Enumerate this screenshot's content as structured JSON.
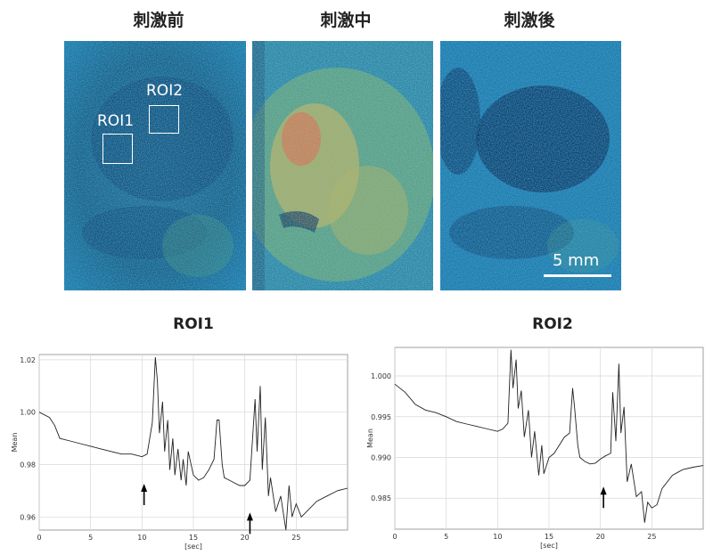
{
  "panels": [
    {
      "title": "刺激前"
    },
    {
      "title": "刺激中"
    },
    {
      "title": "刺激後"
    }
  ],
  "roi_labels": {
    "roi1": "ROI1",
    "roi2": "ROI2"
  },
  "scale_bar": {
    "label": "5 mm"
  },
  "colors": {
    "low": "#0d2a5c",
    "mid": "#1f8fbf",
    "high": "#e8c040",
    "hot": "#e06040"
  },
  "chart_data": [
    {
      "type": "line",
      "title": "ROI1",
      "xlabel": "[sec]",
      "ylabel": "Mean",
      "xlim": [
        0,
        30
      ],
      "ylim": [
        0.955,
        1.022
      ],
      "xticks": [
        0,
        5,
        10,
        15,
        20,
        25
      ],
      "yticks": [
        0.96,
        0.98,
        1.0,
        1.02
      ],
      "ytick_labels": [
        "0.96",
        "0.98",
        "1.00",
        "1.02"
      ],
      "grid": true,
      "annotations": [
        {
          "type": "arrow",
          "x": 10.2,
          "y": 0.972
        },
        {
          "type": "arrow",
          "x": 20.5,
          "y": 0.961
        }
      ],
      "x": [
        0,
        1,
        1.5,
        2,
        3,
        4,
        5,
        6,
        7,
        8,
        9,
        10,
        10.5,
        11,
        11.3,
        11.5,
        11.7,
        12,
        12.2,
        12.5,
        12.7,
        13,
        13.2,
        13.5,
        13.8,
        14,
        14.3,
        14.5,
        15,
        15.5,
        16,
        16.5,
        17,
        17.3,
        17.5,
        17.8,
        18,
        18.5,
        19,
        19.5,
        20,
        20.5,
        21,
        21.2,
        21.5,
        21.7,
        22,
        22.3,
        22.5,
        23,
        23.5,
        24,
        24.3,
        24.6,
        25,
        25.5,
        26,
        27,
        28,
        29,
        30
      ],
      "y": [
        1.0,
        0.998,
        0.995,
        0.99,
        0.989,
        0.988,
        0.987,
        0.986,
        0.985,
        0.984,
        0.984,
        0.983,
        0.984,
        0.996,
        1.021,
        1.012,
        0.992,
        1.004,
        0.985,
        0.997,
        0.978,
        0.99,
        0.976,
        0.986,
        0.974,
        0.982,
        0.972,
        0.985,
        0.976,
        0.974,
        0.975,
        0.978,
        0.982,
        0.997,
        0.997,
        0.98,
        0.975,
        0.974,
        0.973,
        0.972,
        0.972,
        0.974,
        1.005,
        0.985,
        1.01,
        0.978,
        0.998,
        0.968,
        0.975,
        0.962,
        0.968,
        0.955,
        0.972,
        0.96,
        0.965,
        0.96,
        0.962,
        0.966,
        0.968,
        0.97,
        0.971
      ]
    },
    {
      "type": "line",
      "title": "ROI2",
      "xlabel": "[sec]",
      "ylabel": "Mean",
      "xlim": [
        0,
        30
      ],
      "ylim": [
        0.9812,
        1.0035
      ],
      "xticks": [
        0,
        5,
        10,
        15,
        20,
        25
      ],
      "yticks": [
        0.985,
        0.99,
        0.995,
        1.0
      ],
      "ytick_labels": [
        "0.985",
        "0.990",
        "0.995",
        "1.000"
      ],
      "grid": true,
      "annotations": [
        {
          "type": "arrow",
          "x": 20.3,
          "y": 0.9862
        }
      ],
      "x": [
        0,
        1,
        2,
        3,
        4,
        5,
        6,
        7,
        8,
        9,
        10,
        10.5,
        11,
        11.3,
        11.5,
        11.8,
        12,
        12.3,
        12.6,
        13,
        13.3,
        13.6,
        14,
        14.3,
        14.5,
        15,
        15.5,
        16,
        16.5,
        17,
        17.3,
        17.5,
        17.8,
        18,
        18.5,
        19,
        19.5,
        20,
        20.5,
        21,
        21.2,
        21.5,
        21.8,
        22,
        22.3,
        22.6,
        23,
        23.5,
        24,
        24.3,
        24.6,
        25,
        25.5,
        26,
        27,
        28,
        29,
        30
      ],
      "y": [
        0.999,
        0.998,
        0.9965,
        0.9958,
        0.9955,
        0.995,
        0.9944,
        0.9941,
        0.9938,
        0.9935,
        0.9932,
        0.9935,
        0.9942,
        1.0032,
        0.9985,
        1.002,
        0.996,
        0.9982,
        0.9925,
        0.9958,
        0.99,
        0.9932,
        0.9878,
        0.9915,
        0.988,
        0.99,
        0.9905,
        0.9915,
        0.9925,
        0.993,
        0.9985,
        0.996,
        0.9915,
        0.99,
        0.9895,
        0.9892,
        0.9893,
        0.9898,
        0.9902,
        0.9905,
        0.998,
        0.992,
        1.0015,
        0.993,
        0.9962,
        0.987,
        0.9892,
        0.9852,
        0.9858,
        0.982,
        0.9845,
        0.9838,
        0.9842,
        0.9862,
        0.9878,
        0.9885,
        0.9888,
        0.989
      ]
    }
  ]
}
